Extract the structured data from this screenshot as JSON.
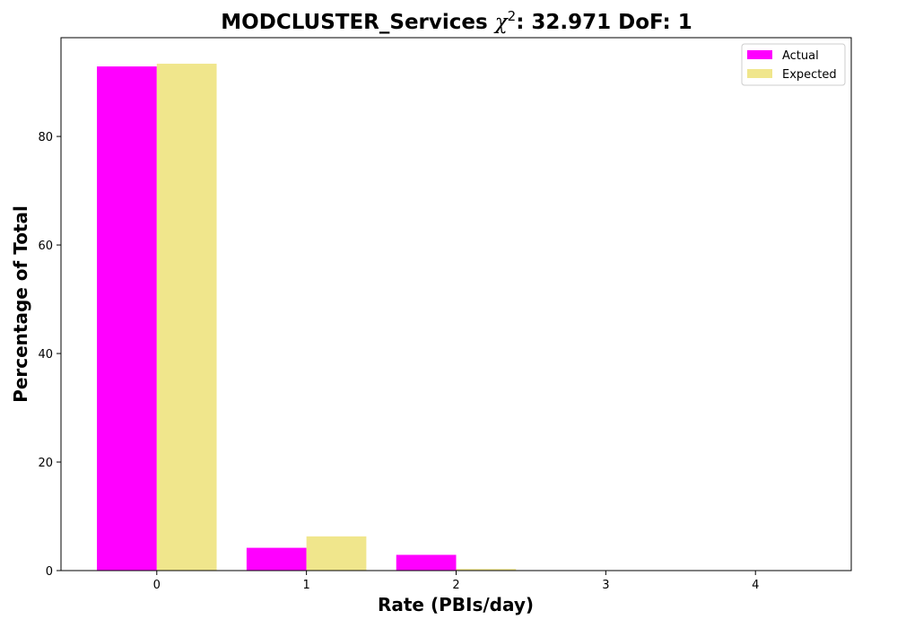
{
  "chart_data": {
    "type": "bar",
    "title_prefix": "MODCLUSTER_Services ",
    "title_symbol": "χ",
    "title_superscript": "2",
    "title_suffix": ": 32.971 DoF: 1",
    "xlabel": "Rate (PBIs/day)",
    "ylabel": "Percentage of Total",
    "categories": [
      "0",
      "1",
      "2",
      "3",
      "4"
    ],
    "x_ticks": [
      "0",
      "1",
      "2",
      "3",
      "4"
    ],
    "y_ticks": [
      "0",
      "20",
      "40",
      "60",
      "80"
    ],
    "xlim": [
      -0.64,
      4.64
    ],
    "ylim": [
      0,
      98.2
    ],
    "grid": false,
    "legend_position": "top-right",
    "series": [
      {
        "name": "Actual",
        "color": "#ff00ff",
        "values": [
          92.9,
          4.2,
          2.9,
          0,
          0
        ]
      },
      {
        "name": "Expected",
        "color": "#f0e68c",
        "values": [
          93.4,
          6.3,
          0.3,
          0,
          0
        ]
      }
    ]
  }
}
